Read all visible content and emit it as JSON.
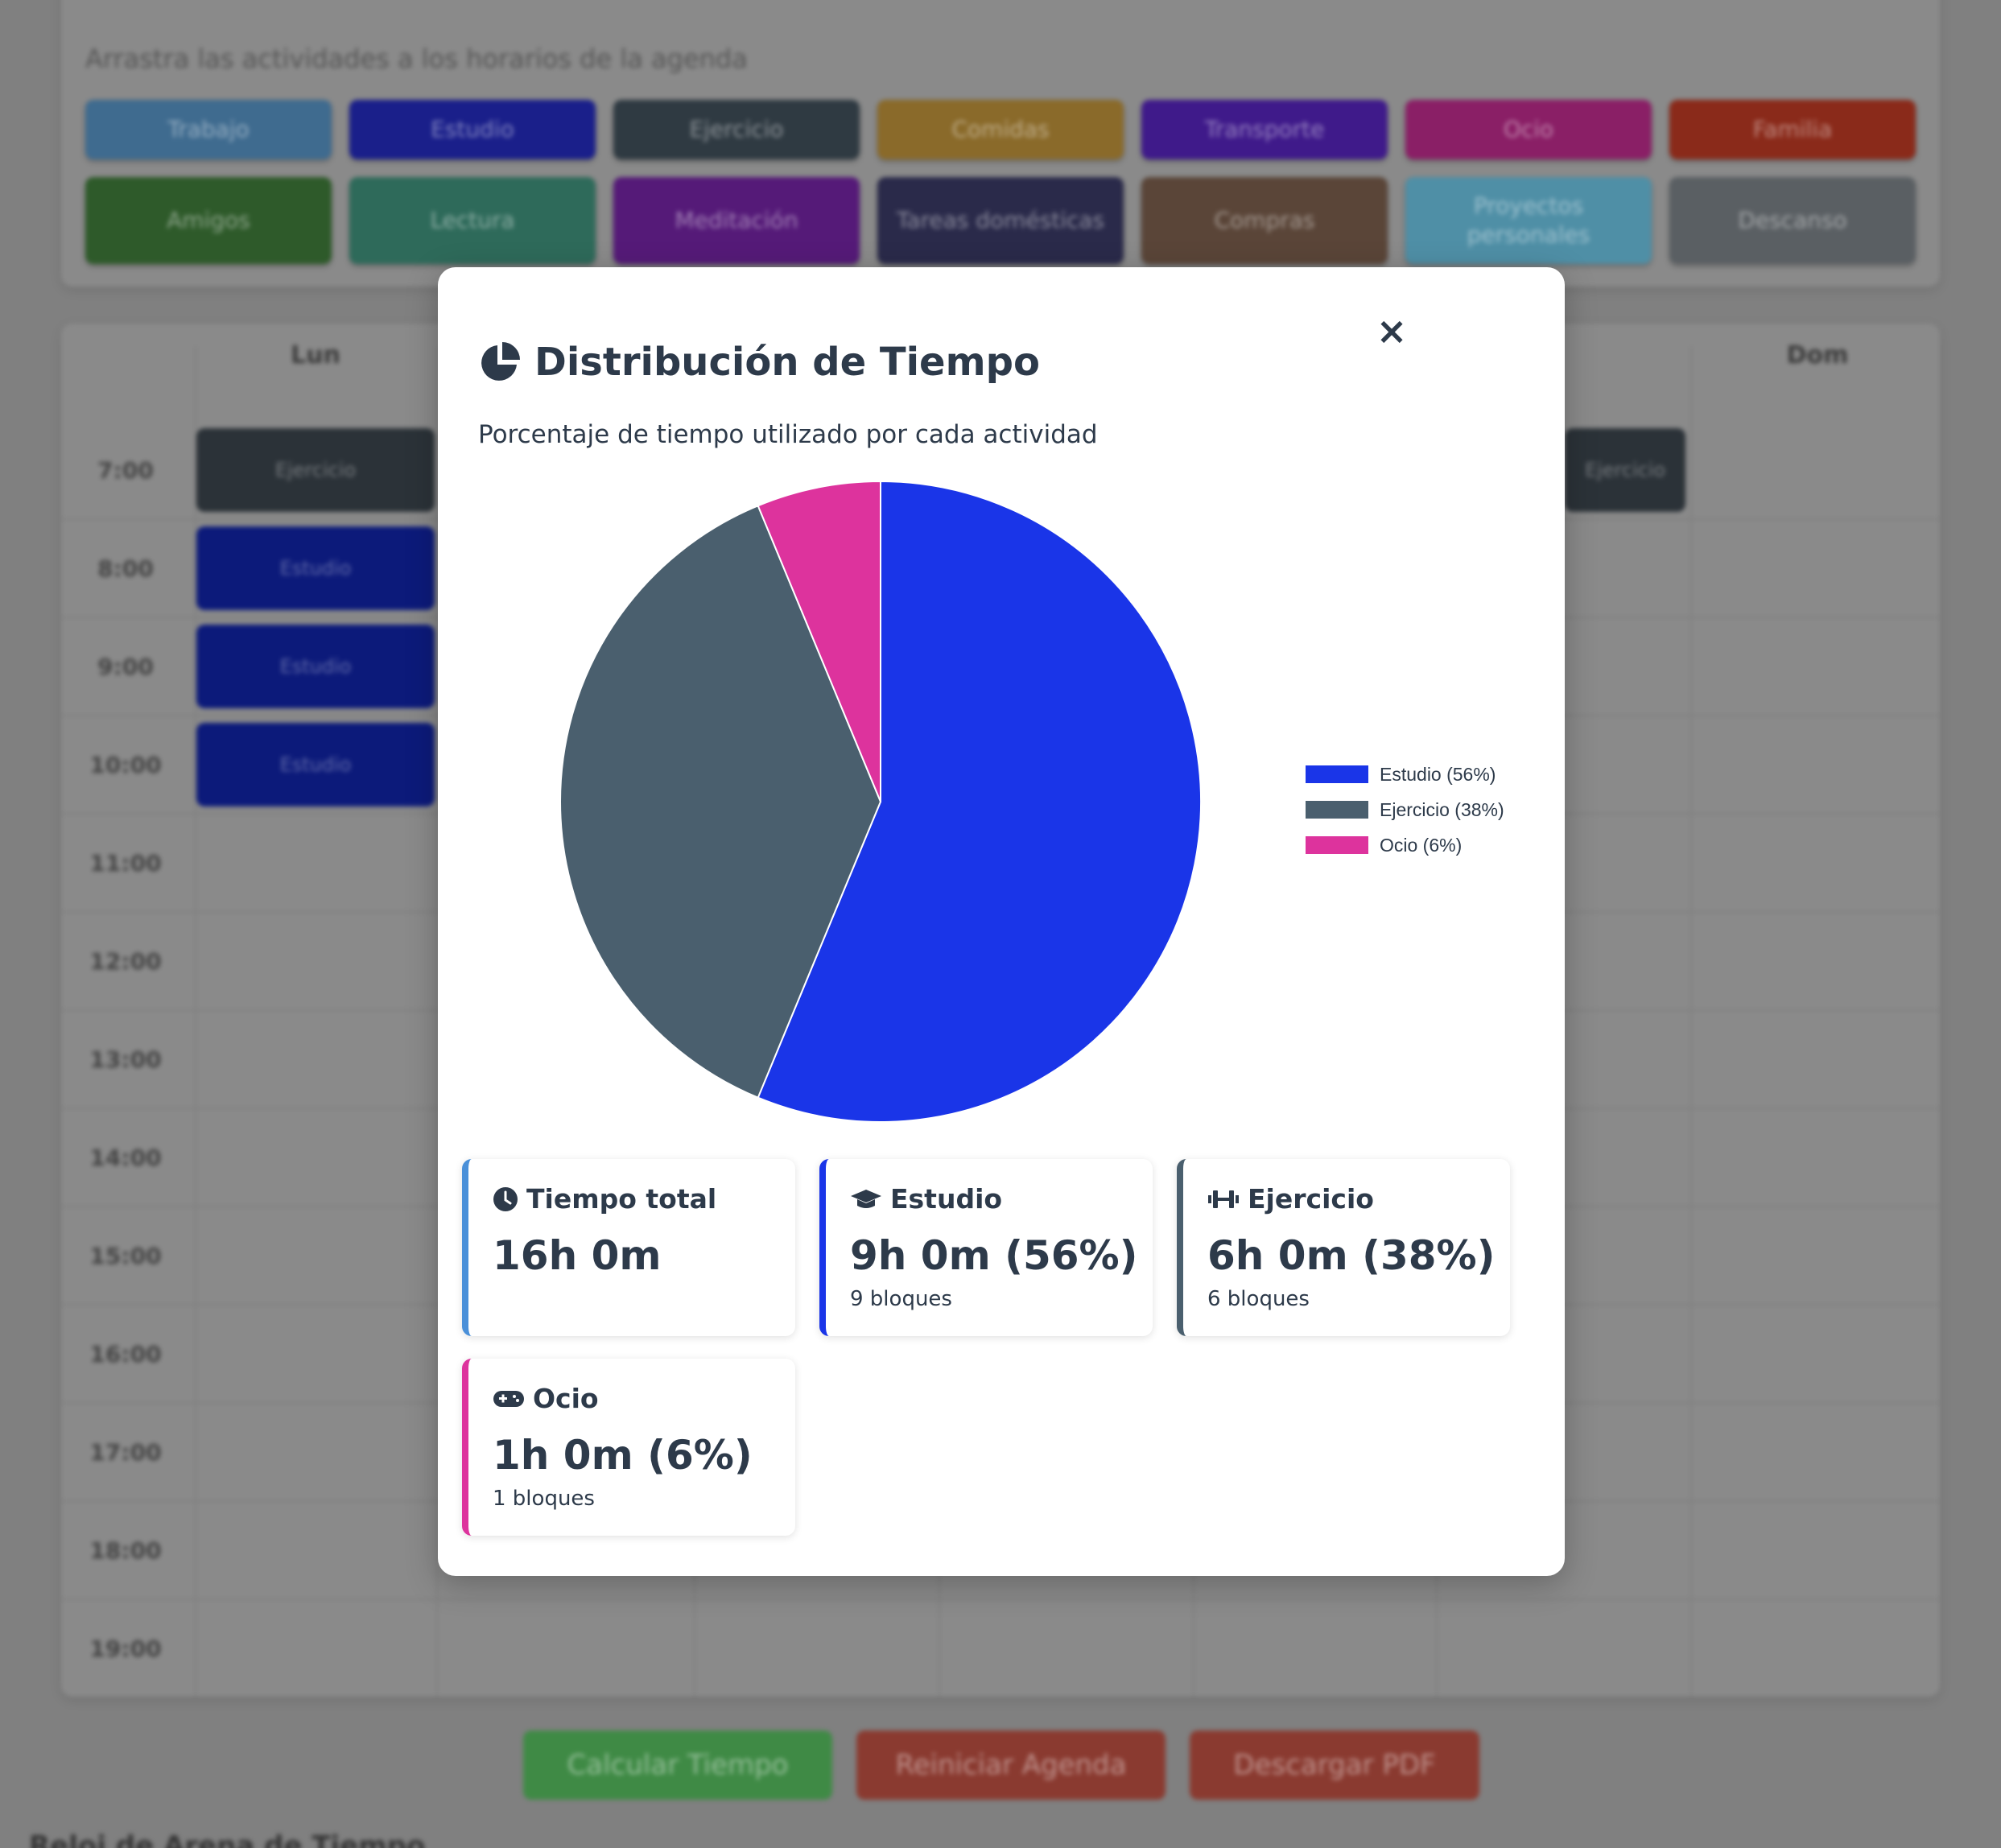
{
  "background": {
    "hint": "Arrastra las actividades a los horarios de la agenda",
    "activities": [
      {
        "label": "Trabajo",
        "color": "#3f6b8f"
      },
      {
        "label": "Estudio",
        "color": "#1a1f8a"
      },
      {
        "label": "Ejercicio",
        "color": "#2f3a42"
      },
      {
        "label": "Comidas",
        "color": "#8a6a2a"
      },
      {
        "label": "Transporte",
        "color": "#3f1a8a"
      },
      {
        "label": "Ocio",
        "color": "#8a1f66"
      },
      {
        "label": "Familia",
        "color": "#8a2a1a"
      },
      {
        "label": "Amigos",
        "color": "#2e5a2a"
      },
      {
        "label": "Lectura",
        "color": "#2e6a5a"
      },
      {
        "label": "Meditación",
        "color": "#551a78"
      },
      {
        "label": "Tareas domésticas",
        "color": "#2a2a4a"
      },
      {
        "label": "Compras",
        "color": "#5a4538"
      },
      {
        "label": "Proyectos personales",
        "color": "#4f8fa6"
      },
      {
        "label": "Descanso",
        "color": "#5a5f63"
      }
    ],
    "days": [
      "Lun",
      "Dom"
    ],
    "times": [
      "7:00",
      "8:00",
      "9:00",
      "10:00",
      "11:00",
      "12:00",
      "13:00",
      "14:00",
      "15:00",
      "16:00",
      "17:00",
      "18:00",
      "19:00"
    ],
    "blocks": [
      "Ejercicio",
      "Estudio",
      "Estudio",
      "Estudio",
      "Ejercicio"
    ],
    "buttons": [
      {
        "label": "Calcular Tiempo",
        "color": "#3f8a45"
      },
      {
        "label": "Reiniciar Agenda",
        "color": "#8a3a30"
      },
      {
        "label": "Descargar PDF",
        "color": "#8a3a30"
      }
    ],
    "footer_title": "Reloj de Arena de Tiempo"
  },
  "modal": {
    "close": "×",
    "title": "Distribución de Tiempo",
    "subtitle": "Porcentaje de tiempo utilizado por cada actividad",
    "cards": [
      {
        "title": "Tiempo total",
        "value": "16h 0m",
        "sub": "",
        "icon": "clock-icon",
        "color": "#4a90d9"
      },
      {
        "title": "Estudio",
        "value": "9h 0m (56%)",
        "sub": "9 bloques",
        "icon": "graduation-cap-icon",
        "color": "#1a35e8"
      },
      {
        "title": "Ejercicio",
        "value": "6h 0m (38%)",
        "sub": "6 bloques",
        "icon": "dumbbell-icon",
        "color": "#4a5f6e"
      },
      {
        "title": "Ocio",
        "value": "1h 0m (6%)",
        "sub": "1 bloques",
        "icon": "gamepad-icon",
        "color": "#dd339d"
      }
    ]
  },
  "chart_data": {
    "type": "pie",
    "categories": [
      "Estudio (56%)",
      "Ejercicio (38%)",
      "Ocio (6%)"
    ],
    "values": [
      9,
      6,
      1
    ],
    "colors": [
      "#1a35e8",
      "#4a5f6e",
      "#dd339d"
    ],
    "legend": "right"
  }
}
